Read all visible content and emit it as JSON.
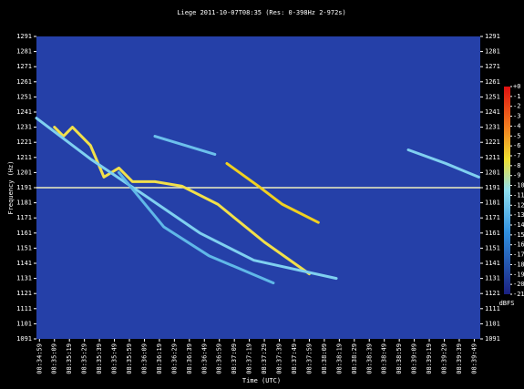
{
  "chart_data": {
    "type": "spectrogram",
    "title": "Liege 2011-10-07T08:35 (Res: 0-398Hz 2-972s)",
    "x_label": "Time (UTC)",
    "y_label": "Frequency (Hz)",
    "xlim": [
      "08:34:57",
      "08:39:53"
    ],
    "xticks": [
      "08:34:59",
      "08:35:09",
      "08:35:19",
      "08:35:29",
      "08:35:39",
      "08:35:49",
      "08:35:59",
      "08:36:09",
      "08:36:19",
      "08:36:29",
      "08:36:39",
      "08:36:49",
      "08:36:59",
      "08:37:09",
      "08:37:19",
      "08:37:29",
      "08:37:39",
      "08:37:49",
      "08:37:59",
      "08:38:09",
      "08:38:19",
      "08:38:29",
      "08:38:39",
      "08:38:49",
      "08:38:59",
      "08:39:09",
      "08:39:19",
      "08:39:29",
      "08:39:39",
      "08:39:49"
    ],
    "ylim": [
      1091,
      1291
    ],
    "yticks": [
      1091,
      1101,
      1111,
      1121,
      1131,
      1141,
      1151,
      1161,
      1171,
      1181,
      1191,
      1201,
      1211,
      1221,
      1231,
      1241,
      1251,
      1261,
      1271,
      1281,
      1291
    ],
    "colorbar": {
      "label": "dBFS",
      "lim": [
        -21,
        0
      ],
      "ticks": [
        {
          "value": 0,
          "label": "+0"
        },
        -1,
        -2,
        -3,
        -4,
        -5,
        -6,
        -7,
        -8,
        -9,
        -10,
        -11,
        -12,
        -13,
        -14,
        -15,
        -16,
        -17,
        -18,
        -19,
        -20,
        -21
      ]
    },
    "series": [
      {
        "color": "#f0f0c0",
        "x": [
          "08:34:57",
          "08:39:53"
        ],
        "values": [
          1191,
          1191
        ]
      },
      {
        "color": "#f2e04a",
        "x": [
          "08:35:09",
          "08:35:15",
          "08:35:21",
          "08:35:33",
          "08:35:42",
          "08:35:52",
          "08:36:01",
          "08:36:16",
          "08:36:34",
          "08:36:58",
          "08:37:29",
          "08:37:59"
        ],
        "values": [
          1231,
          1225,
          1231,
          1219,
          1198,
          1204,
          1195,
          1195,
          1192,
          1180,
          1155,
          1134
        ]
      },
      {
        "color": "#7fd0f0",
        "x": [
          "08:34:57",
          "08:35:33",
          "08:36:09",
          "08:36:46",
          "08:37:22",
          "08:38:17"
        ],
        "values": [
          1237,
          1210,
          1186,
          1161,
          1143,
          1131
        ]
      },
      {
        "color": "#f0d020",
        "x": [
          "08:37:04",
          "08:37:25",
          "08:37:41",
          "08:38:05"
        ],
        "values": [
          1207,
          1192,
          1180,
          1168
        ]
      },
      {
        "color": "#80d0f0",
        "x": [
          "08:39:05",
          "08:39:30",
          "08:39:52"
        ],
        "values": [
          1216,
          1207,
          1198
        ]
      },
      {
        "color": "#6cc0ec",
        "x": [
          "08:36:16",
          "08:36:56"
        ],
        "values": [
          1225,
          1213
        ]
      },
      {
        "color": "#60b8e8",
        "x": [
          "08:35:52",
          "08:36:22",
          "08:36:52",
          "08:37:35"
        ],
        "values": [
          1201,
          1165,
          1146,
          1128
        ]
      }
    ]
  }
}
